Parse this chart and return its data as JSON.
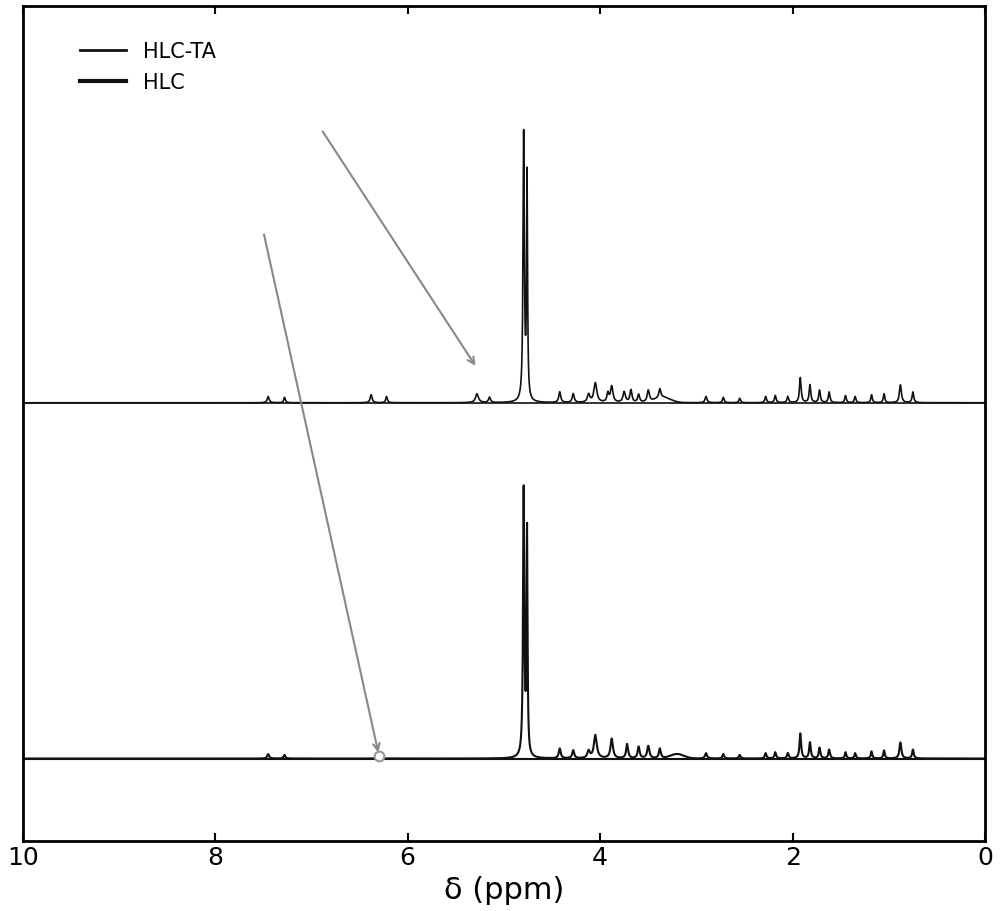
{
  "xlabel": "δ (ppm)",
  "xlim": [
    10,
    0
  ],
  "xticks": [
    10,
    8,
    6,
    4,
    2,
    0
  ],
  "background_color": "#ffffff",
  "line_color": "#111111",
  "annotation_color": "#888888",
  "spectrum1_baseline": 0.52,
  "spectrum2_baseline": 0.0,
  "xlabel_fontsize": 22,
  "tick_fontsize": 18,
  "legend_fontsize": 15,
  "fig_width": 10.0,
  "fig_height": 9.12
}
